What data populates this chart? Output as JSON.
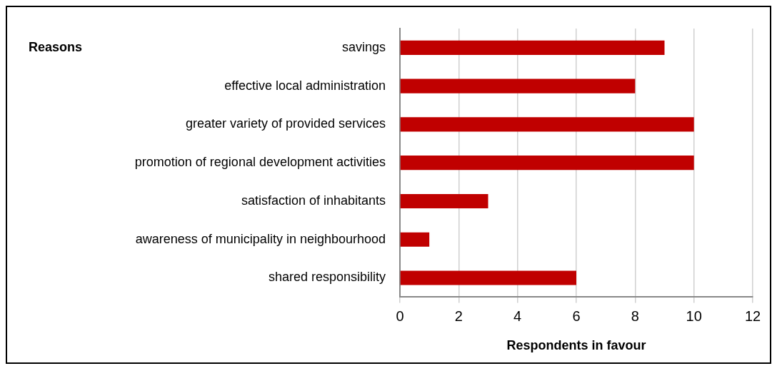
{
  "chart_data": {
    "type": "bar",
    "orientation": "horizontal",
    "ylabel": "Reasons",
    "xlabel": "Respondents in favour",
    "categories": [
      "savings",
      "effective local administration",
      "greater variety of provided services",
      "promotion of regional development activities",
      "satisfaction of inhabitants",
      "awareness of municipality in neighbourhood",
      "shared responsibility"
    ],
    "values": [
      9,
      8,
      10,
      10,
      3,
      1,
      6
    ],
    "color": "#c00000",
    "xlim": [
      0,
      12
    ],
    "xticks": [
      0,
      2,
      4,
      6,
      8,
      10,
      12
    ],
    "grid": "x",
    "legend": false
  }
}
